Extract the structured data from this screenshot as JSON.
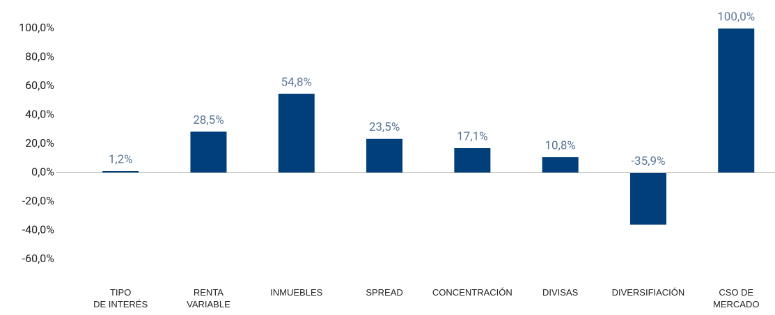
{
  "chart_data": {
    "type": "bar",
    "categories": [
      "TIPO\nDE INTERÉS",
      "RENTA\nVARIABLE",
      "INMUEBLES",
      "SPREAD",
      "CONCENTRACIÓN",
      "DIVISAS",
      "DIVERSIFIACIÓN",
      "CSO DE\nMERCADO"
    ],
    "values": [
      1.2,
      28.5,
      54.8,
      23.5,
      17.1,
      10.8,
      -35.9,
      100
    ],
    "value_labels": [
      "1,2%",
      "28,5%",
      "54,8%",
      "23,5%",
      "17,1%",
      "10,8%",
      "-35,9%",
      "100,0%"
    ],
    "color": "#003f7a",
    "ylim": [
      -60,
      100
    ],
    "yticks": [
      {
        "value": -60,
        "label": "-60,0%"
      },
      {
        "value": -40,
        "label": "-40,0%"
      },
      {
        "value": -20,
        "label": "-20,0%"
      },
      {
        "value": 0,
        "label": "0,0%"
      },
      {
        "value": 20,
        "label": "20,0%"
      },
      {
        "value": 40,
        "label": "40,0%"
      },
      {
        "value": 60,
        "label": "60,0%"
      },
      {
        "value": 80,
        "label": "80,0%"
      },
      {
        "value": 100,
        "label": "100,0%"
      }
    ],
    "grid": false
  }
}
